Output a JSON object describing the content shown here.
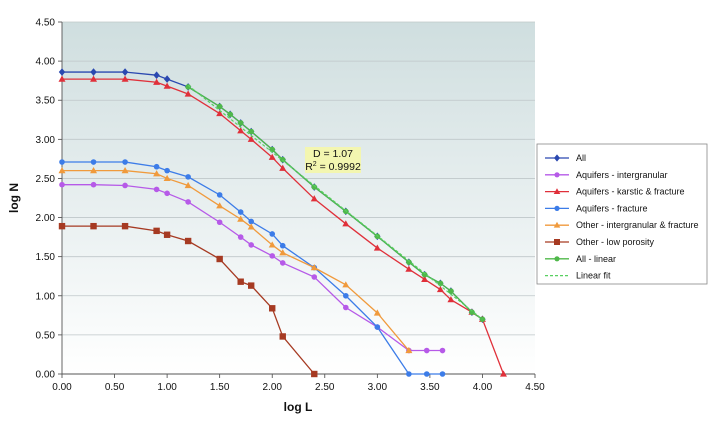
{
  "chart_data": {
    "type": "line",
    "xlabel": "log L",
    "ylabel": "log N",
    "xlim": [
      0,
      4.5
    ],
    "ylim": [
      0,
      4.5
    ],
    "x_ticks": [
      "0.00",
      "0.50",
      "1.00",
      "1.50",
      "2.00",
      "2.50",
      "3.00",
      "3.50",
      "4.00",
      "4.50"
    ],
    "y_ticks": [
      "0.00",
      "0.50",
      "1.00",
      "1.50",
      "2.00",
      "2.50",
      "3.00",
      "3.50",
      "4.00",
      "4.50"
    ],
    "grid": "horizontal",
    "legend_position": "right",
    "annotation": {
      "line1": "D = 1.07",
      "r2_prefix": "R",
      "r2_sup": "2",
      "r2_value": " = 0.9992",
      "x": 2.57,
      "y": 2.75
    },
    "series": [
      {
        "name": "All",
        "color": "#2a48b0",
        "marker": "diamond",
        "x": [
          0.0,
          0.3,
          0.6,
          0.9,
          1.0,
          1.2,
          1.5,
          1.6,
          1.7,
          1.8,
          2.0,
          2.1,
          2.4,
          2.7,
          3.0,
          3.3,
          3.45,
          3.6,
          3.7,
          3.9,
          4.0
        ],
        "y": [
          3.86,
          3.86,
          3.86,
          3.82,
          3.77,
          3.67,
          3.42,
          3.32,
          3.21,
          3.1,
          2.87,
          2.74,
          2.39,
          2.08,
          1.76,
          1.43,
          1.27,
          1.16,
          1.06,
          0.79,
          0.7
        ]
      },
      {
        "name": "Aquifers - intergranular",
        "color": "#b65ae8",
        "marker": "circle",
        "x": [
          0.0,
          0.3,
          0.6,
          0.9,
          1.0,
          1.2,
          1.5,
          1.7,
          1.8,
          2.0,
          2.1,
          2.4,
          2.7,
          3.0,
          3.3,
          3.47,
          3.62
        ],
        "y": [
          2.42,
          2.42,
          2.41,
          2.36,
          2.31,
          2.2,
          1.94,
          1.75,
          1.65,
          1.51,
          1.42,
          1.24,
          0.85,
          0.6,
          0.3,
          0.3,
          0.3
        ]
      },
      {
        "name": "Aquifers - karstic & fracture",
        "color": "#e0303a",
        "marker": "triangle",
        "x": [
          0.0,
          0.3,
          0.6,
          0.9,
          1.0,
          1.2,
          1.5,
          1.7,
          1.8,
          2.0,
          2.1,
          2.4,
          2.7,
          3.0,
          3.3,
          3.45,
          3.6,
          3.7,
          3.9,
          4.0,
          4.2
        ],
        "y": [
          3.77,
          3.77,
          3.77,
          3.73,
          3.68,
          3.58,
          3.33,
          3.11,
          3.0,
          2.77,
          2.63,
          2.24,
          1.92,
          1.61,
          1.34,
          1.21,
          1.08,
          0.95,
          0.79,
          0.7,
          0.0
        ]
      },
      {
        "name": "Aquifers - fracture",
        "color": "#3c7ce8",
        "marker": "circle",
        "x": [
          0.0,
          0.3,
          0.6,
          0.9,
          1.0,
          1.2,
          1.5,
          1.7,
          1.8,
          2.0,
          2.1,
          2.4,
          2.7,
          3.0,
          3.3,
          3.47,
          3.62
        ],
        "y": [
          2.71,
          2.71,
          2.71,
          2.65,
          2.6,
          2.52,
          2.29,
          2.07,
          1.95,
          1.79,
          1.64,
          1.36,
          1.0,
          0.6,
          0.0,
          0.0,
          0.0
        ]
      },
      {
        "name": "Other - intergranular & fracture",
        "color": "#f09a3c",
        "marker": "triangle",
        "x": [
          0.0,
          0.3,
          0.6,
          0.9,
          1.0,
          1.2,
          1.5,
          1.7,
          1.8,
          2.0,
          2.1,
          2.4,
          2.7,
          3.0,
          3.3
        ],
        "y": [
          2.6,
          2.6,
          2.6,
          2.56,
          2.5,
          2.41,
          2.15,
          1.98,
          1.88,
          1.65,
          1.55,
          1.36,
          1.14,
          0.78,
          0.3
        ]
      },
      {
        "name": "Other - low porosity",
        "color": "#a63a22",
        "marker": "square",
        "x": [
          0.0,
          0.3,
          0.6,
          0.9,
          1.0,
          1.2,
          1.5,
          1.7,
          1.8,
          2.0,
          2.1,
          2.4
        ],
        "y": [
          1.89,
          1.89,
          1.89,
          1.83,
          1.78,
          1.7,
          1.47,
          1.18,
          1.13,
          0.84,
          0.48,
          0.0
        ]
      },
      {
        "name": "All - linear",
        "color": "#4fb84a",
        "marker": "circle",
        "x": [
          1.2,
          1.5,
          1.6,
          1.7,
          1.8,
          2.0,
          2.1,
          2.4,
          2.7,
          3.0,
          3.3,
          3.45,
          3.6,
          3.7,
          3.9,
          4.0
        ],
        "y": [
          3.67,
          3.42,
          3.32,
          3.21,
          3.1,
          2.87,
          2.74,
          2.39,
          2.08,
          1.76,
          1.43,
          1.27,
          1.16,
          1.06,
          0.79,
          0.7
        ]
      },
      {
        "name": "Linear fit",
        "color": "#58d060",
        "marker": "none",
        "dashed": true,
        "x": [
          1.2,
          4.0
        ],
        "y": [
          3.69,
          0.7
        ]
      }
    ]
  },
  "colors": {
    "plot_gradient_top": "#cfdedf",
    "plot_gradient_bottom": "#ffffff",
    "grid": "#bfc7c9",
    "annotation_box": "#f3f6b0"
  }
}
